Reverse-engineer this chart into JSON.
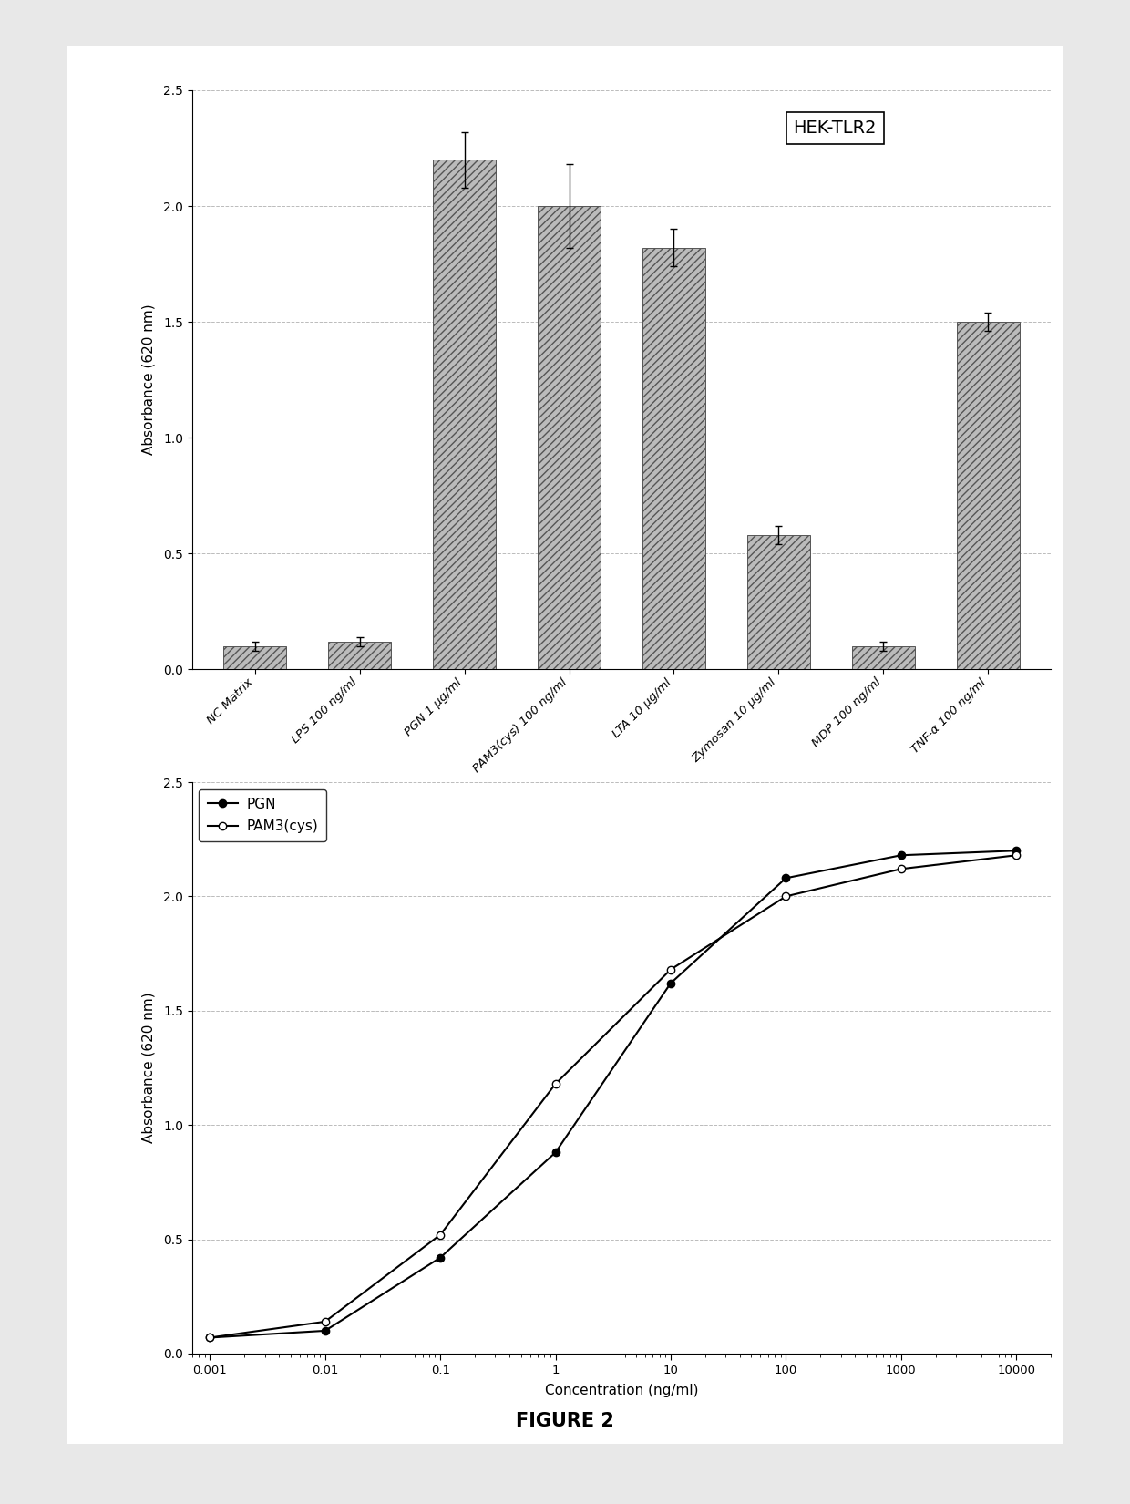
{
  "bar_categories": [
    "NC Matrix",
    "LPS 100 ng/ml",
    "PGN 1 μg/ml",
    "PAM3(cys) 100 ng/ml",
    "LTA 10 μg/ml",
    "Zymosan 10 μg/ml",
    "MDP 100 ng/ml",
    "TNF-α 100 ng/ml"
  ],
  "bar_values": [
    0.1,
    0.12,
    2.2,
    2.0,
    1.82,
    0.58,
    0.1,
    1.5
  ],
  "bar_errors": [
    0.02,
    0.02,
    0.12,
    0.18,
    0.08,
    0.04,
    0.02,
    0.04
  ],
  "bar_ylim": [
    0,
    2.5
  ],
  "bar_yticks": [
    0,
    0.5,
    1.0,
    1.5,
    2.0,
    2.5
  ],
  "bar_ylabel": "Absorbance (620 nm)",
  "bar_annotation": "HEK-TLR2",
  "bar_hatch": "////",
  "bar_color": "#bbbbbb",
  "bar_edgecolor": "#555555",
  "line_x_pgn": [
    0.001,
    0.01,
    0.1,
    1,
    10,
    100,
    1000,
    10000
  ],
  "line_y_pgn": [
    0.07,
    0.1,
    0.42,
    0.88,
    1.62,
    2.08,
    2.18,
    2.2
  ],
  "line_x_pam": [
    0.001,
    0.01,
    0.1,
    1,
    10,
    100,
    1000,
    10000
  ],
  "line_y_pam": [
    0.07,
    0.14,
    0.52,
    1.18,
    1.68,
    2.0,
    2.12,
    2.18
  ],
  "line_ylim": [
    0,
    2.5
  ],
  "line_yticks": [
    0,
    0.5,
    1.0,
    1.5,
    2.0,
    2.5
  ],
  "line_ylabel": "Absorbance (620 nm)",
  "line_xlabel": "Concentration (ng/ml)",
  "line_xtick_vals": [
    0.001,
    0.01,
    0.1,
    1,
    10,
    100,
    1000,
    10000
  ],
  "line_xtick_labels": [
    "0.001",
    "0.01",
    "0.1",
    "1",
    "10",
    "100",
    "1000",
    "10000"
  ],
  "figure_title": "FIGURE 2",
  "background_color": "#ffffff",
  "page_color": "#e8e8e8",
  "text_color": "#000000",
  "grid_color": "#bbbbbb"
}
